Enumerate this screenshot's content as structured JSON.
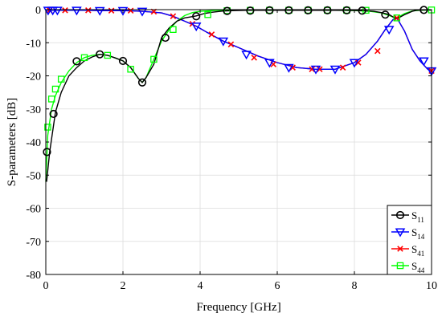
{
  "chart_data": {
    "type": "line",
    "title": "",
    "xlabel": "Frequency [GHz]",
    "ylabel": "S-parameters [dB]",
    "xlim": [
      0,
      10
    ],
    "ylim": [
      -80,
      0
    ],
    "xticks": [
      0,
      2,
      4,
      6,
      8,
      10
    ],
    "yticks": [
      0,
      -10,
      -20,
      -30,
      -40,
      -50,
      -60,
      -70,
      -80
    ],
    "grid": true,
    "legend_position": "bottom-right",
    "series": [
      {
        "name": "S11",
        "legend": {
          "base": "S",
          "sub": "11"
        },
        "color": "#000000",
        "marker": "circle",
        "x": [
          0.02,
          0.1,
          0.25,
          0.4,
          0.6,
          0.8,
          1.0,
          1.2,
          1.4,
          1.6,
          1.8,
          2.0,
          2.2,
          2.4,
          2.5,
          2.6,
          2.8,
          3.0,
          3.2,
          3.4,
          3.6,
          3.8,
          3.9,
          4.1,
          4.3,
          4.6,
          4.9,
          5.2,
          5.6,
          6.0,
          6.3,
          6.8,
          7.3,
          7.8,
          8.2,
          8.5,
          8.7,
          8.9,
          9.0,
          9.1,
          9.3,
          9.5,
          9.6,
          9.8,
          10.0
        ],
        "y": [
          -52,
          -43,
          -31,
          -25,
          -20,
          -17.5,
          -15.5,
          -14.3,
          -13.5,
          -13.8,
          -14.6,
          -15.5,
          -17.5,
          -20.8,
          -22,
          -20.5,
          -16.5,
          -8.5,
          -5.5,
          -3.5,
          -2.5,
          -2.1,
          -1.9,
          -1.2,
          -0.8,
          -0.4,
          -0.3,
          -0.2,
          -0.2,
          -0.2,
          -0.2,
          -0.2,
          -0.2,
          -0.2,
          -0.3,
          -0.5,
          -0.9,
          -1.5,
          -2.2,
          -2.8,
          -1.5,
          -0.5,
          -0.2,
          -0.1,
          -0.1
        ],
        "marker_x": [
          0.03,
          0.2,
          0.8,
          1.4,
          2.0,
          2.5,
          3.1,
          3.9,
          4.7,
          5.3,
          5.8,
          6.3,
          6.8,
          7.3,
          7.8,
          8.2,
          8.8,
          9.8
        ],
        "marker_y": [
          -43,
          -31.5,
          -15.6,
          -13.5,
          -15.5,
          -22,
          -8.5,
          -2,
          -0.4,
          -0.3,
          -0.2,
          -0.2,
          -0.2,
          -0.2,
          -0.2,
          -0.3,
          -1.5,
          -0.1
        ]
      },
      {
        "name": "S14",
        "legend": {
          "base": "S",
          "sub": "14"
        },
        "color": "#0000ff",
        "marker": "triangle-down",
        "x": [
          0.0,
          0.5,
          1.0,
          1.5,
          2.0,
          2.5,
          3.0,
          3.3,
          3.6,
          3.9,
          4.2,
          4.6,
          5.0,
          5.5,
          6.0,
          6.5,
          7.0,
          7.5,
          8.0,
          8.3,
          8.6,
          8.8,
          9.0,
          9.1,
          9.3,
          9.5,
          9.7,
          9.9,
          10.0
        ],
        "y": [
          -0.2,
          -0.2,
          -0.2,
          -0.3,
          -0.3,
          -0.5,
          -1.0,
          -2.0,
          -3.5,
          -5.0,
          -7.0,
          -9.5,
          -11.5,
          -14.0,
          -16.0,
          -17.5,
          -18.0,
          -18.0,
          -16.0,
          -13.5,
          -9.5,
          -6.0,
          -3.0,
          -2.5,
          -6.5,
          -12.0,
          -15.5,
          -18.0,
          -18.5
        ],
        "marker_x": [
          0.06,
          0.18,
          0.3,
          0.8,
          1.4,
          2.0,
          2.5,
          3.9,
          4.6,
          5.2,
          5.8,
          6.3,
          7.0,
          7.5,
          8.0,
          8.9,
          9.8,
          10.0
        ],
        "marker_y": [
          -0.2,
          -0.2,
          -0.2,
          -0.2,
          -0.3,
          -0.3,
          -0.5,
          -5.0,
          -9.5,
          -13.5,
          -16.0,
          -17.5,
          -18.0,
          -18.0,
          -16.0,
          -6.0,
          -15.5,
          -18.5
        ]
      },
      {
        "name": "S41",
        "legend": {
          "base": "S",
          "sub": "41"
        },
        "color": "#ff0000",
        "marker": "x",
        "x": [
          0.0,
          0.5,
          1.0,
          1.5,
          2.0,
          2.5,
          3.0,
          3.3,
          3.6,
          3.9,
          4.2,
          4.6,
          5.0,
          5.5,
          6.0,
          6.5,
          7.0,
          7.5,
          8.0,
          8.3,
          8.6,
          8.8,
          9.0,
          9.1,
          9.3,
          9.5,
          9.7,
          9.9,
          10.0
        ],
        "y": [
          -0.2,
          -0.2,
          -0.2,
          -0.3,
          -0.3,
          -0.5,
          -1.0,
          -2.0,
          -3.5,
          -5.0,
          -7.0,
          -9.5,
          -11.5,
          -14.0,
          -16.0,
          -17.5,
          -18.0,
          -18.0,
          -16.0,
          -13.5,
          -9.5,
          -6.0,
          -3.0,
          -2.5,
          -6.5,
          -12.0,
          -15.5,
          -18.0,
          -18.5
        ],
        "marker_x": [
          0.1,
          0.5,
          1.1,
          1.7,
          2.2,
          2.8,
          3.3,
          3.8,
          4.3,
          4.8,
          5.4,
          5.9,
          6.4,
          6.9,
          7.1,
          7.7,
          8.1,
          8.6,
          9.1,
          10.0
        ],
        "marker_y": [
          -0.2,
          -0.2,
          -0.2,
          -0.3,
          -0.3,
          -0.6,
          -2.0,
          -4.3,
          -7.5,
          -10.5,
          -14.5,
          -16.5,
          -17.5,
          -18.0,
          -18.0,
          -17.5,
          -16.0,
          -12.5,
          -2.5,
          -18.5
        ]
      },
      {
        "name": "S44",
        "legend": {
          "base": "S",
          "sub": "44"
        },
        "color": "#00ff00",
        "marker": "square",
        "x": [
          0.0,
          0.05,
          0.15,
          0.25,
          0.4,
          0.6,
          0.8,
          1.0,
          1.2,
          1.4,
          1.6,
          1.8,
          2.0,
          2.2,
          2.4,
          2.5,
          2.6,
          2.8,
          3.0,
          3.2,
          3.4,
          3.6,
          3.8,
          4.0,
          4.3,
          4.6,
          5.0,
          5.5,
          6.0,
          6.5,
          7.0,
          7.5,
          8.0,
          8.4,
          8.7,
          8.9,
          9.0,
          9.1,
          9.3,
          9.5,
          9.7,
          10.0
        ],
        "y": [
          -52,
          -38,
          -30,
          -26,
          -22,
          -18.5,
          -16,
          -14.5,
          -13.8,
          -13.5,
          -13.8,
          -14.6,
          -15.5,
          -17.5,
          -20.8,
          -22,
          -20.5,
          -15,
          -9.5,
          -6,
          -3.5,
          -1.8,
          -0.9,
          -0.5,
          -0.3,
          -0.2,
          -0.2,
          -0.2,
          -0.2,
          -0.2,
          -0.2,
          -0.2,
          -0.3,
          -0.5,
          -1.0,
          -1.8,
          -2.2,
          -2.5,
          -1.2,
          -0.4,
          -0.2,
          -0.1
        ],
        "marker_x": [
          0.05,
          0.15,
          0.25,
          0.4,
          1.0,
          1.6,
          2.2,
          2.8,
          3.3,
          4.2,
          4.7,
          5.3,
          5.8,
          6.3,
          6.8,
          7.3,
          7.8,
          8.3,
          9.1,
          10.0
        ],
        "marker_y": [
          -35.5,
          -27,
          -24,
          -21,
          -14.5,
          -13.8,
          -18,
          -15,
          -6,
          -1.5,
          -0.3,
          -0.2,
          -0.2,
          -0.2,
          -0.2,
          -0.2,
          -0.2,
          -0.2,
          -2.5,
          -0.1
        ]
      }
    ]
  }
}
